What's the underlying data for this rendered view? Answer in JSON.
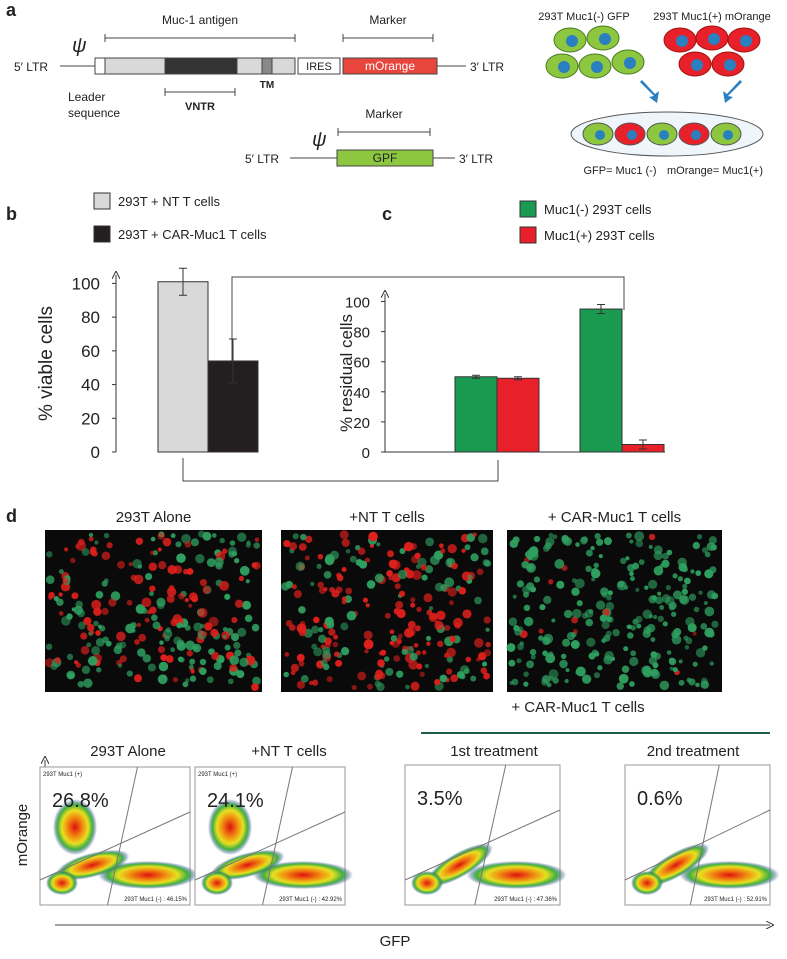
{
  "panel_a": {
    "letter": "a",
    "construct1": {
      "ltr5": "5′ LTR",
      "psi": "ψ",
      "antigen": "Muc-1 antigen",
      "marker": "Marker",
      "ires": "IRES",
      "morange": "mOrange",
      "ltr3": "3′ LTR",
      "leader1": "Leader",
      "leader2": "sequence",
      "vntr": "VNTR",
      "tm": "TM"
    },
    "construct2": {
      "ltr5": "5′ LTR",
      "psi": "ψ",
      "marker": "Marker",
      "gpf": "GPF",
      "ltr3": "3′ LTR"
    },
    "cells": {
      "gfp_label": "293T Muc1(-) GFP",
      "morange_label": "293T Muc1(+) mOrange",
      "gfp_key": "GFP= Muc1 (-)",
      "morange_key": "mOrange= Muc1(+)"
    }
  },
  "chart_data": [
    {
      "type": "bar",
      "panel": "b",
      "ylabel": "% viable cells",
      "categories": [
        null
      ],
      "series": [
        {
          "name": "293T + NT T cells",
          "color": "#d9d9d9",
          "values": [
            101
          ],
          "errors": [
            8
          ]
        },
        {
          "name": "293T + CAR-Muc1 T cells",
          "color": "#231f20",
          "values": [
            54
          ],
          "errors": [
            13
          ]
        }
      ],
      "ylim": [
        0,
        105
      ],
      "yticks": [
        0,
        20,
        40,
        60,
        80,
        100
      ],
      "baseline": false
    },
    {
      "type": "bar",
      "panel": "c",
      "ylabel": "% residual cells",
      "categories": [
        null,
        null
      ],
      "series": [
        {
          "name": "Muc1(-) 293T cells",
          "color": "#1a9a50",
          "values": [
            50,
            95
          ],
          "errors": [
            1,
            3
          ]
        },
        {
          "name": "Muc1(+) 293T cells",
          "color": "#e8202a",
          "values": [
            49,
            5
          ],
          "errors": [
            1,
            3
          ]
        }
      ],
      "ylim": [
        0,
        105
      ],
      "yticks": [
        0,
        20,
        40,
        60,
        80,
        100
      ],
      "baseline": true
    }
  ],
  "panel_d": {
    "letter": "d",
    "images": [
      "293T Alone",
      "+NT T cells",
      "+ CAR-Muc1 T cells"
    ],
    "flow_group": "+ CAR-Muc1 T cells",
    "flow": [
      {
        "title": "293T Alone",
        "percent": "26.8%",
        "gate_pos": "293T Muc1 (+)",
        "gate_neg": "293T Muc1 (-) : 46.15%"
      },
      {
        "title": "+NT T cells",
        "percent": "24.1%",
        "gate_pos": "293T Muc1 (+)",
        "gate_neg": "293T Muc1 (-) : 42.92%"
      },
      {
        "title": "1st treatment",
        "percent": "3.5%",
        "gate_pos": "",
        "gate_neg": "293T Muc1 (-) : 47.36%"
      },
      {
        "title": "2nd treatment",
        "percent": "0.6%",
        "gate_pos": "",
        "gate_neg": "293T Muc1 (-) : 52.91%"
      }
    ],
    "ylabel": "mOrange",
    "xlabel": "GFP"
  }
}
